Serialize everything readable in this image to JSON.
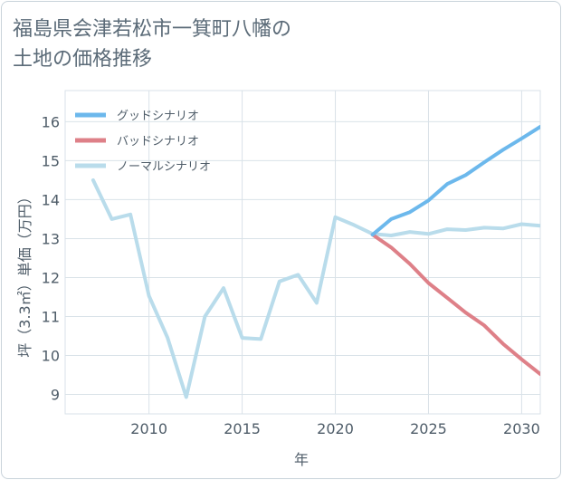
{
  "title_line1": "福島県会津若松市一箕町八幡の",
  "title_line2": "土地の価格推移",
  "chart_data": {
    "type": "line",
    "title": "福島県会津若松市一箕町八幡の土地の価格推移",
    "xlabel": "年",
    "ylabel": "坪（3.3㎡）単価（万円）",
    "xlim": [
      2005.5,
      2031
    ],
    "ylim": [
      8.5,
      16.8
    ],
    "x_ticks": [
      2010,
      2015,
      2020,
      2025,
      2030
    ],
    "y_ticks": [
      9,
      10,
      11,
      12,
      13,
      14,
      15,
      16
    ],
    "legend_position": "top-left",
    "series": [
      {
        "name": "グッドシナリオ",
        "color": "#6cb8ec",
        "x": [
          2022,
          2023,
          2024,
          2025,
          2026,
          2027,
          2028,
          2029,
          2030,
          2031
        ],
        "y": [
          13.1,
          13.5,
          13.68,
          13.98,
          14.4,
          14.63,
          14.96,
          15.28,
          15.57,
          15.87
        ]
      },
      {
        "name": "バッドシナリオ",
        "color": "#de8088",
        "x": [
          2022,
          2023,
          2024,
          2025,
          2026,
          2027,
          2028,
          2029,
          2030,
          2031
        ],
        "y": [
          13.1,
          12.77,
          12.35,
          11.86,
          11.48,
          11.1,
          10.77,
          10.3,
          9.9,
          9.52
        ]
      },
      {
        "name": "ノーマルシナリオ",
        "color": "#b9dceb",
        "x": [
          2007,
          2008,
          2009,
          2010,
          2011,
          2012,
          2013,
          2014,
          2015,
          2016,
          2017,
          2018,
          2019,
          2020,
          2021,
          2022,
          2023,
          2024,
          2025,
          2026,
          2027,
          2028,
          2029,
          2030,
          2031
        ],
        "y": [
          14.5,
          13.5,
          13.62,
          11.53,
          10.45,
          8.93,
          11.0,
          11.73,
          10.45,
          10.42,
          11.9,
          12.07,
          11.35,
          13.55,
          13.35,
          13.12,
          13.08,
          13.17,
          13.12,
          13.24,
          13.22,
          13.28,
          13.26,
          13.37,
          13.33
        ]
      }
    ]
  }
}
